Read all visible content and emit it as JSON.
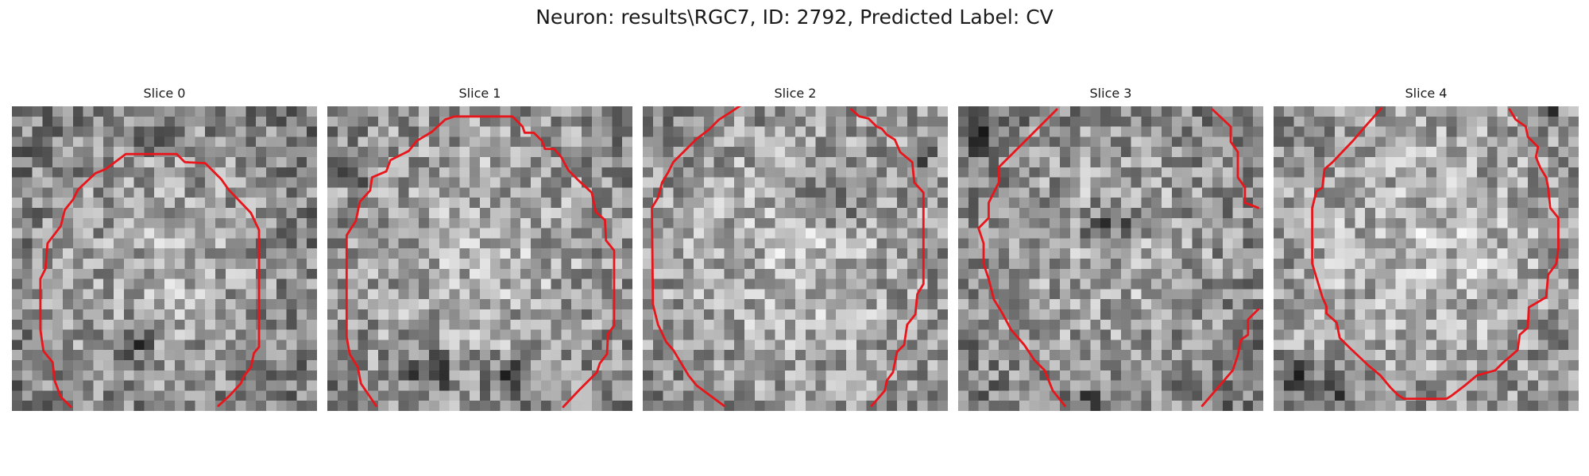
{
  "figure": {
    "title": "Neuron: results\\RGC7, ID: 2792, Predicted Label: CV"
  },
  "panels": [
    {
      "title": "Slice 0"
    },
    {
      "title": "Slice 1"
    },
    {
      "title": "Slice 2"
    },
    {
      "title": "Slice 3"
    },
    {
      "title": "Slice 4"
    }
  ],
  "colors": {
    "contour": "#e8151b",
    "background": "#ffffff"
  }
}
